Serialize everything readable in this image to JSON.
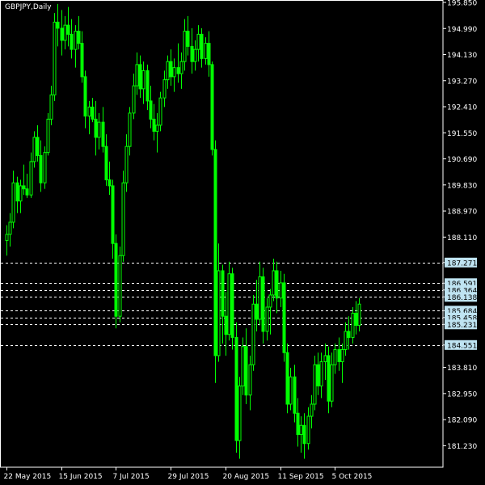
{
  "header": {
    "symbol_label": "GBPJPY,Daily"
  },
  "chart_data": {
    "type": "candlestick",
    "symbol": "GBPJPY",
    "timeframe": "Daily",
    "ylim": [
      180.6,
      195.85
    ],
    "yticks": [
      "195.850",
      "194.990",
      "194.130",
      "193.270",
      "192.410",
      "191.550",
      "190.690",
      "189.830",
      "188.970",
      "188.110",
      "187.271",
      "186.591",
      "186.364",
      "186.138",
      "185.684",
      "185.458",
      "185.231",
      "184.551",
      "183.810",
      "182.950",
      "182.090",
      "181.230"
    ],
    "levels": [
      187.271,
      186.591,
      186.364,
      186.138,
      185.684,
      185.458,
      185.231,
      184.551
    ],
    "xticks": [
      "22 May 2015",
      "15 Jun 2015",
      "7 Jul 2015",
      "29 Jul 2015",
      "20 Aug 2015",
      "11 Sep 2015",
      "5 Oct 2015"
    ],
    "grid": false,
    "colors": {
      "background": "#000000",
      "candle": "#00ff00",
      "axis": "#ffffff",
      "level_line": "#ffffff",
      "level_label_bg": "#bfe4f2"
    },
    "candles": [
      {
        "date": "22 May 2015",
        "o": 188.0,
        "h": 188.5,
        "l": 187.5,
        "c": 188.2
      },
      {
        "date": "25 May 2015",
        "o": 188.2,
        "h": 188.9,
        "l": 187.8,
        "c": 188.6
      },
      {
        "date": "26 May 2015",
        "o": 188.6,
        "h": 190.3,
        "l": 188.4,
        "c": 189.9
      },
      {
        "date": "27 May 2015",
        "o": 189.9,
        "h": 190.1,
        "l": 188.9,
        "c": 189.3
      },
      {
        "date": "28 May 2015",
        "o": 189.3,
        "h": 190.0,
        "l": 188.9,
        "c": 189.8
      },
      {
        "date": "29 May 2015",
        "o": 189.8,
        "h": 190.5,
        "l": 189.5,
        "c": 189.7
      },
      {
        "date": "1 Jun 2015",
        "o": 189.7,
        "h": 190.2,
        "l": 189.4,
        "c": 189.5
      },
      {
        "date": "2 Jun 2015",
        "o": 189.5,
        "h": 190.9,
        "l": 189.4,
        "c": 190.6
      },
      {
        "date": "3 Jun 2015",
        "o": 190.6,
        "h": 191.6,
        "l": 190.4,
        "c": 191.4
      },
      {
        "date": "4 Jun 2015",
        "o": 191.4,
        "h": 191.8,
        "l": 190.6,
        "c": 190.8
      },
      {
        "date": "5 Jun 2015",
        "o": 190.8,
        "h": 191.3,
        "l": 189.6,
        "c": 189.9
      },
      {
        "date": "8 Jun 2015",
        "o": 189.9,
        "h": 191.1,
        "l": 189.7,
        "c": 190.9
      },
      {
        "date": "9 Jun 2015",
        "o": 190.9,
        "h": 192.2,
        "l": 190.8,
        "c": 192.0
      },
      {
        "date": "10 Jun 2015",
        "o": 192.0,
        "h": 193.1,
        "l": 191.8,
        "c": 192.8
      },
      {
        "date": "11 Jun 2015",
        "o": 192.8,
        "h": 195.5,
        "l": 192.6,
        "c": 195.2
      },
      {
        "date": "12 Jun 2015",
        "o": 195.2,
        "h": 195.8,
        "l": 194.4,
        "c": 195.0
      },
      {
        "date": "15 Jun 2015",
        "o": 195.0,
        "h": 195.6,
        "l": 194.1,
        "c": 194.6
      },
      {
        "date": "16 Jun 2015",
        "o": 194.6,
        "h": 195.4,
        "l": 194.3,
        "c": 195.1
      },
      {
        "date": "17 Jun 2015",
        "o": 195.1,
        "h": 195.7,
        "l": 194.4,
        "c": 194.8
      },
      {
        "date": "18 Jun 2015",
        "o": 194.8,
        "h": 195.3,
        "l": 194.0,
        "c": 194.3
      },
      {
        "date": "19 Jun 2015",
        "o": 194.3,
        "h": 195.1,
        "l": 193.7,
        "c": 194.9
      },
      {
        "date": "22 Jun 2015",
        "o": 194.9,
        "h": 195.4,
        "l": 194.3,
        "c": 194.5
      },
      {
        "date": "23 Jun 2015",
        "o": 194.5,
        "h": 194.9,
        "l": 193.2,
        "c": 193.4
      },
      {
        "date": "24 Jun 2015",
        "o": 193.4,
        "h": 193.6,
        "l": 191.7,
        "c": 192.1
      },
      {
        "date": "25 Jun 2015",
        "o": 192.1,
        "h": 192.6,
        "l": 191.5,
        "c": 192.4
      },
      {
        "date": "26 Jun 2015",
        "o": 192.4,
        "h": 192.7,
        "l": 191.9,
        "c": 192.0
      },
      {
        "date": "29 Jun 2015",
        "o": 192.0,
        "h": 192.6,
        "l": 190.8,
        "c": 191.4
      },
      {
        "date": "30 Jun 2015",
        "o": 191.4,
        "h": 192.2,
        "l": 191.0,
        "c": 191.9
      },
      {
        "date": "1 Jul 2015",
        "o": 191.9,
        "h": 192.4,
        "l": 190.9,
        "c": 191.1
      },
      {
        "date": "2 Jul 2015",
        "o": 191.1,
        "h": 191.5,
        "l": 189.8,
        "c": 190.0
      },
      {
        "date": "3 Jul 2015",
        "o": 190.0,
        "h": 190.6,
        "l": 189.5,
        "c": 189.8
      },
      {
        "date": "6 Jul 2015",
        "o": 189.8,
        "h": 190.0,
        "l": 187.4,
        "c": 187.9
      },
      {
        "date": "7 Jul 2015",
        "o": 187.9,
        "h": 188.2,
        "l": 185.1,
        "c": 185.5
      },
      {
        "date": "8 Jul 2015",
        "o": 185.5,
        "h": 187.8,
        "l": 185.3,
        "c": 187.5
      },
      {
        "date": "9 Jul 2015",
        "o": 187.5,
        "h": 190.3,
        "l": 187.3,
        "c": 189.9
      },
      {
        "date": "10 Jul 2015",
        "o": 189.9,
        "h": 191.5,
        "l": 189.6,
        "c": 191.1
      },
      {
        "date": "13 Jul 2015",
        "o": 191.1,
        "h": 192.4,
        "l": 190.8,
        "c": 192.2
      },
      {
        "date": "14 Jul 2015",
        "o": 192.2,
        "h": 193.5,
        "l": 192.0,
        "c": 193.1
      },
      {
        "date": "15 Jul 2015",
        "o": 193.1,
        "h": 194.2,
        "l": 192.8,
        "c": 193.8
      },
      {
        "date": "16 Jul 2015",
        "o": 193.8,
        "h": 194.1,
        "l": 192.7,
        "c": 193.0
      },
      {
        "date": "17 Jul 2015",
        "o": 193.0,
        "h": 193.9,
        "l": 192.5,
        "c": 193.6
      },
      {
        "date": "20 Jul 2015",
        "o": 193.6,
        "h": 193.8,
        "l": 192.3,
        "c": 192.6
      },
      {
        "date": "21 Jul 2015",
        "o": 192.6,
        "h": 193.1,
        "l": 191.7,
        "c": 192.0
      },
      {
        "date": "22 Jul 2015",
        "o": 192.0,
        "h": 192.5,
        "l": 191.3,
        "c": 191.6
      },
      {
        "date": "23 Jul 2015",
        "o": 191.6,
        "h": 192.2,
        "l": 190.9,
        "c": 191.8
      },
      {
        "date": "24 Jul 2015",
        "o": 191.8,
        "h": 192.9,
        "l": 191.6,
        "c": 192.7
      },
      {
        "date": "27 Jul 2015",
        "o": 192.7,
        "h": 193.6,
        "l": 192.4,
        "c": 193.3
      },
      {
        "date": "28 Jul 2015",
        "o": 193.3,
        "h": 194.1,
        "l": 193.0,
        "c": 193.9
      },
      {
        "date": "29 Jul 2015",
        "o": 193.9,
        "h": 194.3,
        "l": 193.1,
        "c": 193.4
      },
      {
        "date": "30 Jul 2015",
        "o": 193.4,
        "h": 194.0,
        "l": 192.9,
        "c": 193.7
      },
      {
        "date": "31 Jul 2015",
        "o": 193.7,
        "h": 194.5,
        "l": 193.2,
        "c": 193.5
      },
      {
        "date": "3 Aug 2015",
        "o": 193.5,
        "h": 194.2,
        "l": 193.0,
        "c": 193.9
      },
      {
        "date": "4 Aug 2015",
        "o": 193.9,
        "h": 195.3,
        "l": 193.6,
        "c": 194.9
      },
      {
        "date": "5 Aug 2015",
        "o": 194.9,
        "h": 195.4,
        "l": 194.1,
        "c": 194.4
      },
      {
        "date": "6 Aug 2015",
        "o": 194.4,
        "h": 195.0,
        "l": 193.5,
        "c": 193.9
      },
      {
        "date": "7 Aug 2015",
        "o": 193.9,
        "h": 194.6,
        "l": 193.6,
        "c": 194.3
      },
      {
        "date": "10 Aug 2015",
        "o": 194.3,
        "h": 195.1,
        "l": 193.9,
        "c": 194.8
      },
      {
        "date": "11 Aug 2015",
        "o": 194.8,
        "h": 195.0,
        "l": 193.7,
        "c": 194.0
      },
      {
        "date": "12 Aug 2015",
        "o": 194.0,
        "h": 194.7,
        "l": 193.8,
        "c": 194.5
      },
      {
        "date": "13 Aug 2015",
        "o": 194.5,
        "h": 194.9,
        "l": 193.4,
        "c": 193.8
      },
      {
        "date": "14 Aug 2015",
        "o": 193.8,
        "h": 193.9,
        "l": 190.8,
        "c": 191.0
      },
      {
        "date": "17 Aug 2015",
        "o": 191.0,
        "h": 191.3,
        "l": 183.3,
        "c": 184.2
      },
      {
        "date": "18 Aug 2015",
        "o": 184.2,
        "h": 187.9,
        "l": 184.0,
        "c": 187.0
      },
      {
        "date": "19 Aug 2015",
        "o": 187.0,
        "h": 187.2,
        "l": 184.6,
        "c": 185.5
      },
      {
        "date": "20 Aug 2015",
        "o": 185.5,
        "h": 186.3,
        "l": 184.2,
        "c": 184.9
      },
      {
        "date": "21 Aug 2015",
        "o": 184.9,
        "h": 187.3,
        "l": 184.7,
        "c": 186.9
      },
      {
        "date": "24 Aug 2015",
        "o": 186.9,
        "h": 187.1,
        "l": 184.4,
        "c": 184.8
      },
      {
        "date": "25 Aug 2015",
        "o": 184.8,
        "h": 185.3,
        "l": 181.0,
        "c": 181.4
      },
      {
        "date": "26 Aug 2015",
        "o": 181.4,
        "h": 183.5,
        "l": 180.8,
        "c": 183.2
      },
      {
        "date": "27 Aug 2015",
        "o": 183.2,
        "h": 184.8,
        "l": 182.9,
        "c": 184.5
      },
      {
        "date": "28 Aug 2015",
        "o": 184.5,
        "h": 185.1,
        "l": 182.6,
        "c": 182.9
      },
      {
        "date": "31 Aug 2015",
        "o": 182.9,
        "h": 184.2,
        "l": 182.4,
        "c": 183.9
      },
      {
        "date": "1 Sep 2015",
        "o": 183.9,
        "h": 186.2,
        "l": 183.7,
        "c": 185.9
      },
      {
        "date": "2 Sep 2015",
        "o": 185.9,
        "h": 186.7,
        "l": 185.0,
        "c": 185.4
      },
      {
        "date": "3 Sep 2015",
        "o": 185.4,
        "h": 187.3,
        "l": 185.2,
        "c": 186.8
      },
      {
        "date": "4 Sep 2015",
        "o": 186.8,
        "h": 187.1,
        "l": 184.6,
        "c": 185.0
      },
      {
        "date": "7 Sep 2015",
        "o": 185.0,
        "h": 186.1,
        "l": 184.7,
        "c": 185.8
      },
      {
        "date": "8 Sep 2015",
        "o": 185.8,
        "h": 186.4,
        "l": 184.9,
        "c": 186.2
      },
      {
        "date": "9 Sep 2015",
        "o": 186.2,
        "h": 187.4,
        "l": 186.0,
        "c": 187.0
      },
      {
        "date": "10 Sep 2015",
        "o": 187.0,
        "h": 187.3,
        "l": 185.6,
        "c": 186.1
      },
      {
        "date": "11 Sep 2015",
        "o": 186.1,
        "h": 187.0,
        "l": 185.8,
        "c": 186.6
      },
      {
        "date": "14 Sep 2015",
        "o": 186.6,
        "h": 186.9,
        "l": 184.0,
        "c": 184.3
      },
      {
        "date": "15 Sep 2015",
        "o": 184.3,
        "h": 184.6,
        "l": 182.3,
        "c": 182.6
      },
      {
        "date": "16 Sep 2015",
        "o": 182.6,
        "h": 183.8,
        "l": 182.4,
        "c": 183.5
      },
      {
        "date": "17 Sep 2015",
        "o": 183.5,
        "h": 183.9,
        "l": 182.0,
        "c": 182.3
      },
      {
        "date": "18 Sep 2015",
        "o": 182.3,
        "h": 182.8,
        "l": 181.2,
        "c": 181.6
      },
      {
        "date": "21 Sep 2015",
        "o": 181.6,
        "h": 182.2,
        "l": 181.0,
        "c": 181.9
      },
      {
        "date": "22 Sep 2015",
        "o": 181.9,
        "h": 182.3,
        "l": 180.8,
        "c": 181.3
      },
      {
        "date": "23 Sep 2015",
        "o": 181.3,
        "h": 182.5,
        "l": 181.1,
        "c": 182.2
      },
      {
        "date": "24 Sep 2015",
        "o": 182.2,
        "h": 182.9,
        "l": 181.8,
        "c": 182.6
      },
      {
        "date": "25 Sep 2015",
        "o": 182.6,
        "h": 184.2,
        "l": 182.4,
        "c": 183.9
      },
      {
        "date": "28 Sep 2015",
        "o": 183.9,
        "h": 184.3,
        "l": 182.9,
        "c": 183.2
      },
      {
        "date": "29 Sep 2015",
        "o": 183.2,
        "h": 184.3,
        "l": 182.8,
        "c": 184.0
      },
      {
        "date": "30 Sep 2015",
        "o": 184.0,
        "h": 184.6,
        "l": 183.4,
        "c": 184.2
      },
      {
        "date": "1 Oct 2015",
        "o": 184.2,
        "h": 184.5,
        "l": 182.3,
        "c": 182.7
      },
      {
        "date": "2 Oct 2015",
        "o": 182.7,
        "h": 184.3,
        "l": 182.5,
        "c": 183.9
      },
      {
        "date": "5 Oct 2015",
        "o": 183.9,
        "h": 184.6,
        "l": 183.6,
        "c": 184.4
      },
      {
        "date": "6 Oct 2015",
        "o": 184.4,
        "h": 184.8,
        "l": 183.7,
        "c": 184.0
      },
      {
        "date": "7 Oct 2015",
        "o": 184.0,
        "h": 184.6,
        "l": 183.3,
        "c": 184.4
      },
      {
        "date": "8 Oct 2015",
        "o": 184.4,
        "h": 185.3,
        "l": 184.2,
        "c": 185.0
      },
      {
        "date": "9 Oct 2015",
        "o": 185.0,
        "h": 185.5,
        "l": 184.4,
        "c": 184.8
      },
      {
        "date": "12 Oct 2015",
        "o": 184.8,
        "h": 185.8,
        "l": 184.6,
        "c": 185.6
      },
      {
        "date": "13 Oct 2015",
        "o": 185.6,
        "h": 186.0,
        "l": 184.9,
        "c": 185.2
      },
      {
        "date": "14 Oct 2015",
        "o": 185.2,
        "h": 186.1,
        "l": 185.0,
        "c": 185.9
      }
    ]
  }
}
